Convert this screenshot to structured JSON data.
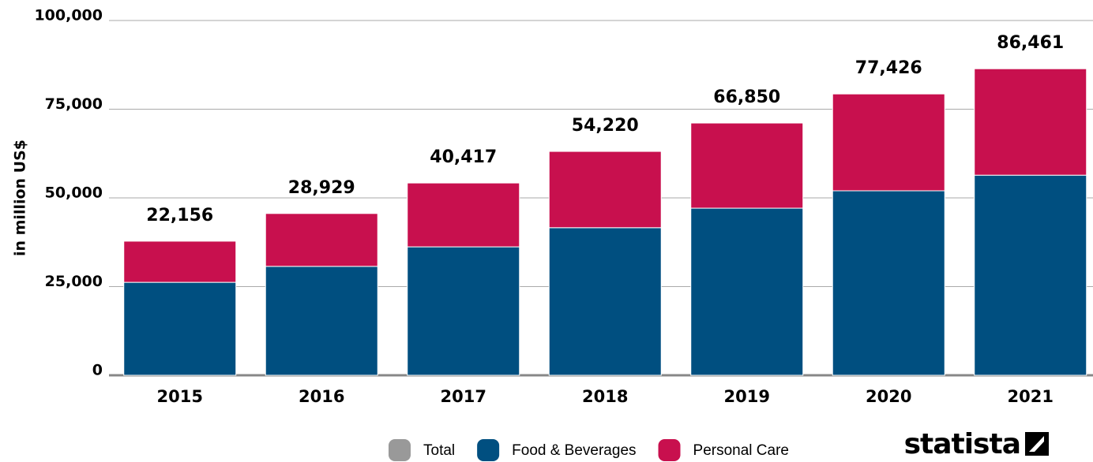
{
  "chart_data": {
    "type": "bar",
    "stacked": true,
    "y_label": "in million US$",
    "categories": [
      "2015",
      "2016",
      "2017",
      "2018",
      "2019",
      "2020",
      "2021"
    ],
    "series": [
      {
        "name": "Total",
        "color": "#999999",
        "values": [
          22156,
          28929,
          40417,
          54220,
          66850,
          77426,
          86461
        ],
        "value_labels": [
          "22,156",
          "28,929",
          "40,417",
          "54,220",
          "66,850",
          "77,426",
          "86,461"
        ]
      },
      {
        "name": "Food & Beverages",
        "color": "#004f80",
        "values": [
          26200,
          30700,
          36200,
          41600,
          47100,
          52000,
          56400
        ]
      },
      {
        "name": "Personal Care",
        "color": "#c8104e",
        "values": [
          11600,
          14900,
          18000,
          21500,
          24000,
          27300,
          30000
        ]
      }
    ],
    "ylim": [
      0,
      100000
    ],
    "yticks": [
      0,
      {
        "value": 25000,
        "label": "25,000"
      },
      {
        "value": 50000,
        "label": "50,000"
      },
      {
        "value": 75000,
        "label": "75,000"
      },
      {
        "value": 100000,
        "label": "100,000"
      }
    ],
    "grid": true,
    "legend": "bottom",
    "brand": "statista"
  }
}
